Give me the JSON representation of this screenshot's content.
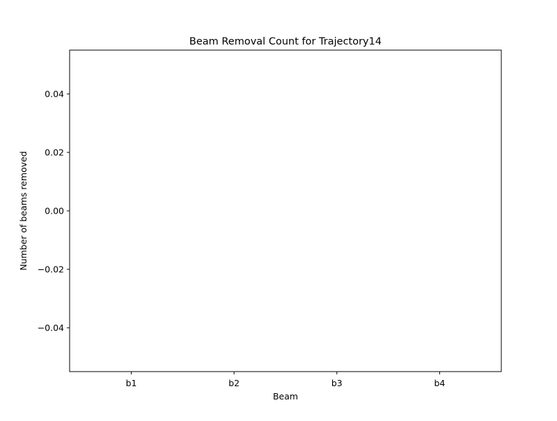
{
  "chart_data": {
    "type": "bar",
    "title": "Beam Removal Count for Trajectory14",
    "xlabel": "Beam",
    "ylabel": "Number of beams removed",
    "categories": [
      "b1",
      "b2",
      "b3",
      "b4"
    ],
    "values": [
      0,
      0,
      0,
      0
    ],
    "ylim": [
      -0.055,
      0.055
    ],
    "yticks": [
      -0.04,
      -0.02,
      0.0,
      0.02,
      0.04
    ],
    "ytick_labels": [
      "−0.04",
      "−0.02",
      "0.00",
      "0.02",
      "0.04"
    ],
    "grid": false,
    "bar_color": "#1f77b4"
  }
}
